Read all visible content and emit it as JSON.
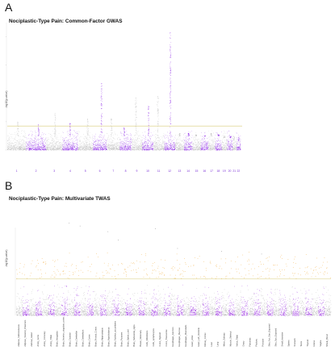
{
  "panels": [
    {
      "letter": "A",
      "title": "Nociplastic-Type Pain: Common-Factor GWAS",
      "ylabel": "-log10(p-value)"
    },
    {
      "letter": "B",
      "title": "Nociplastic-Type Pain: Multivariate TWAS",
      "ylabel": "-log10(p-value)"
    }
  ],
  "chart_data": [
    {
      "type": "scatter",
      "subtype": "manhattan",
      "title": "Nociplastic-Type Pain: Common-Factor GWAS",
      "ylabel": "-log10(p-value)",
      "categories": [
        "1",
        "2",
        "3",
        "4",
        "5",
        "6",
        "7",
        "8",
        "9",
        "10",
        "11",
        "12",
        "13",
        "14",
        "15",
        "16",
        "17",
        "18",
        "19",
        "20",
        "21",
        "22"
      ],
      "colors": {
        "odd": "#b9b9b9",
        "even": "#8f2be6",
        "threshold": "#d8cc7a"
      },
      "peaks": [
        {
          "chr": "1",
          "height": 20
        },
        {
          "chr": "2",
          "height": 18
        },
        {
          "chr": "3",
          "height": 26
        },
        {
          "chr": "4",
          "height": 19
        },
        {
          "chr": "5",
          "height": 22
        },
        {
          "chr": "6",
          "height": 47
        },
        {
          "chr": "7",
          "height": 22
        },
        {
          "chr": "8",
          "height": 16
        },
        {
          "chr": "9",
          "height": 37
        },
        {
          "chr": "10",
          "height": 31
        },
        {
          "chr": "11",
          "height": 38
        },
        {
          "chr": "12",
          "height": 83
        },
        {
          "chr": "13",
          "height": 12
        },
        {
          "chr": "14",
          "height": 12
        },
        {
          "chr": "15",
          "height": 11
        },
        {
          "chr": "16",
          "height": 10
        },
        {
          "chr": "17",
          "height": 12
        },
        {
          "chr": "18",
          "height": 11
        },
        {
          "chr": "19",
          "height": 9
        },
        {
          "chr": "20",
          "height": 9
        },
        {
          "chr": "21",
          "height": 7
        },
        {
          "chr": "22",
          "height": 7
        }
      ],
      "threshold": 17,
      "ylim": [
        0,
        90
      ],
      "grid": false
    },
    {
      "type": "scatter",
      "subtype": "manhattan",
      "title": "Nociplastic-Type Pain: Multivariate TWAS",
      "ylabel": "-log10(p-value)",
      "colors": {
        "odd": "#9a2fe0",
        "even": "#b5b5b5",
        "hit": "#f0a020",
        "threshold": "#d8cc7a"
      },
      "tissues": [
        "Adipose_Subcutaneous",
        "Adipose_Visceral_Omentum",
        "Adrenal_Gland",
        "Artery_Aorta",
        "Artery_Coronary",
        "Artery_Tibial",
        "Brain_Amygdala",
        "Brain_Anterior_cingulate_cortex",
        "Brain_Caudate",
        "Brain_Cerebellar",
        "Brain_Cerebellum",
        "Brain_Cortex",
        "Brain_Frontal_Cortex",
        "Brain_Hippocampus",
        "Brain_Hypothalamus",
        "Brain_Nucleus_accumbens",
        "Brain_Putamen",
        "Brain_Spinal_cord",
        "Brain_Substantia_nigra",
        "Breast_Mammary",
        "Cells_Fibroblasts",
        "Cells_Lymphocytes",
        "Colon_Sigmoid",
        "Colon_Transverse",
        "Esophagus_Junction",
        "Esophagus_Mucosa",
        "Esophagus_Muscularis",
        "Heart_Atrial",
        "Heart_Left_Ventricle",
        "Kidney_Cortex",
        "Liver",
        "Lung",
        "Minor_Salivary",
        "Muscle_Skeletal",
        "Nerve_Tibial",
        "Ovary",
        "Pancreas",
        "Pituitary",
        "Prostate",
        "Skin_Not_Sun_Exposed",
        "Skin_Sun_Exposed",
        "Small_Intestine",
        "Spleen",
        "Stomach",
        "Testis",
        "Thyroid",
        "Uterus",
        "Vagina",
        "Whole_Blood"
      ],
      "ylim": [
        0,
        40
      ],
      "threshold": 13,
      "grid": false
    }
  ]
}
